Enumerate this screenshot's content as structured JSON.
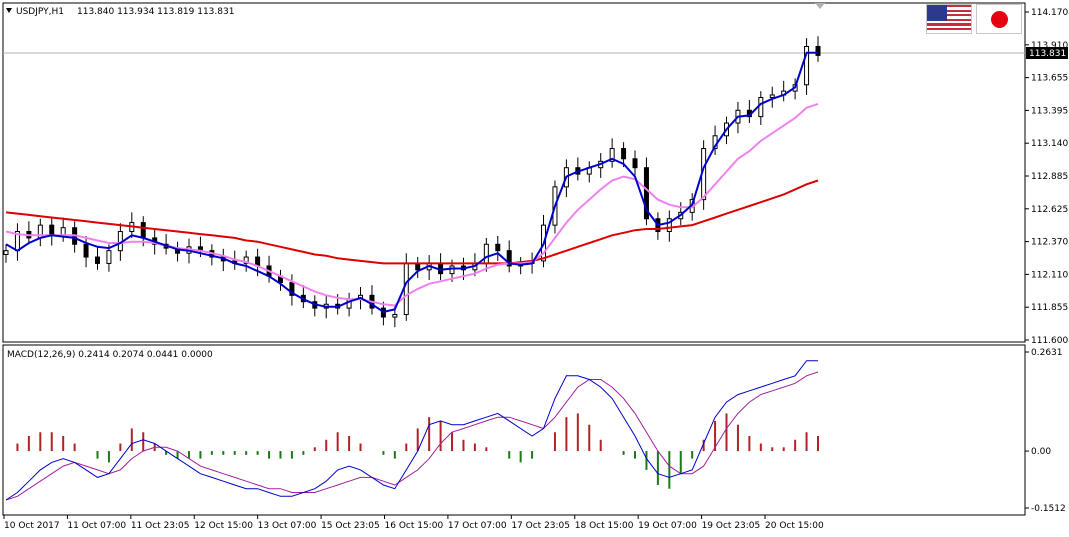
{
  "header": {
    "symbol": "USDJPY,H1",
    "ohlc": "113.840 113.934 113.819 113.831"
  },
  "flags": {
    "base": "us-flag-icon",
    "quote": "jp-flag-icon"
  },
  "macd": {
    "label": "MACD(12,26,9) 0.2414 0.2074 0.0441 0.0000",
    "colors": {
      "pos_hist": "#b22222",
      "neg_hist": "#1a7a1a",
      "macd_line": "#0000cc",
      "signal_line": "#a020a0"
    }
  },
  "chart_data": [
    {
      "type": "candlestick",
      "title": "USDJPY,H1",
      "ylim": [
        111.6,
        114.17
      ],
      "yticks": [
        "114.170",
        "113.910",
        "113.655",
        "113.395",
        "113.140",
        "112.885",
        "112.625",
        "112.370",
        "112.110",
        "111.855",
        "111.600"
      ],
      "current_price": "113.831",
      "xticks": [
        "10 Oct 2017",
        "11 Oct 07:00",
        "11 Oct 23:05",
        "12 Oct 15:00",
        "13 Oct 07:00",
        "15 Oct 23:05",
        "16 Oct 15:00",
        "17 Oct 07:00",
        "17 Oct 23:05",
        "18 Oct 15:00",
        "19 Oct 07:00",
        "19 Oct 23:05",
        "20 Oct 15:00"
      ],
      "colors": {
        "candle": "#000000",
        "fast_ma": "#0000cc",
        "mid_ma": "#ee82ee",
        "slow_ma": "#dd0000"
      },
      "close": [
        112.3,
        112.45,
        112.4,
        112.5,
        112.42,
        112.48,
        112.35,
        112.25,
        112.2,
        112.3,
        112.45,
        112.52,
        112.4,
        112.35,
        112.32,
        112.28,
        112.33,
        112.3,
        112.25,
        112.22,
        112.2,
        112.25,
        112.18,
        112.1,
        112.05,
        111.95,
        111.9,
        111.85,
        111.88,
        111.85,
        111.92,
        111.95,
        111.85,
        111.78,
        111.8,
        112.2,
        112.15,
        112.2,
        112.12,
        112.18,
        112.15,
        112.2,
        112.35,
        112.3,
        112.18,
        112.2,
        112.22,
        112.5,
        112.8,
        112.95,
        112.9,
        112.95,
        113.0,
        113.1,
        113.02,
        112.95,
        112.55,
        112.45,
        112.55,
        112.6,
        112.7,
        113.1,
        113.2,
        113.3,
        113.4,
        113.35,
        113.5,
        113.52,
        113.55,
        113.6,
        113.9,
        113.83
      ],
      "fast_ma": [
        112.35,
        112.3,
        112.36,
        112.4,
        112.42,
        112.41,
        112.4,
        112.36,
        112.33,
        112.32,
        112.36,
        112.42,
        112.4,
        112.37,
        112.34,
        112.31,
        112.3,
        112.28,
        112.26,
        112.24,
        112.2,
        112.18,
        112.14,
        112.1,
        112.04,
        111.97,
        111.92,
        111.88,
        111.86,
        111.86,
        111.9,
        111.93,
        111.88,
        111.82,
        111.84,
        112.05,
        112.14,
        112.18,
        112.15,
        112.16,
        112.16,
        112.18,
        112.25,
        112.28,
        112.2,
        112.19,
        112.2,
        112.35,
        112.65,
        112.88,
        112.92,
        112.95,
        112.98,
        113.02,
        112.98,
        112.88,
        112.62,
        112.5,
        112.52,
        112.58,
        112.66,
        112.95,
        113.12,
        113.25,
        113.35,
        113.36,
        113.45,
        113.49,
        113.52,
        113.58,
        113.85,
        113.85
      ],
      "mid_ma": [
        112.45,
        112.43,
        112.42,
        112.42,
        112.42,
        112.42,
        112.42,
        112.4,
        112.38,
        112.36,
        112.36,
        112.37,
        112.37,
        112.36,
        112.34,
        112.32,
        112.31,
        112.3,
        112.28,
        112.26,
        112.23,
        112.21,
        112.18,
        112.14,
        112.1,
        112.06,
        112.02,
        111.98,
        111.95,
        111.93,
        111.92,
        111.92,
        111.9,
        111.88,
        111.87,
        111.95,
        112.0,
        112.04,
        112.06,
        112.08,
        112.1,
        112.12,
        112.16,
        112.19,
        112.2,
        112.2,
        112.21,
        112.28,
        112.4,
        112.52,
        112.62,
        112.7,
        112.78,
        112.85,
        112.88,
        112.86,
        112.78,
        112.7,
        112.66,
        112.64,
        112.64,
        112.72,
        112.82,
        112.92,
        113.02,
        113.08,
        113.16,
        113.22,
        113.28,
        113.34,
        113.42,
        113.45
      ],
      "slow_ma": [
        112.6,
        112.59,
        112.58,
        112.57,
        112.56,
        112.55,
        112.54,
        112.53,
        112.52,
        112.51,
        112.5,
        112.49,
        112.48,
        112.47,
        112.46,
        112.45,
        112.44,
        112.43,
        112.42,
        112.41,
        112.4,
        112.38,
        112.37,
        112.35,
        112.33,
        112.31,
        112.29,
        112.27,
        112.26,
        112.24,
        112.23,
        112.22,
        112.21,
        112.2,
        112.2,
        112.2,
        112.2,
        112.2,
        112.2,
        112.2,
        112.2,
        112.2,
        112.2,
        112.2,
        112.2,
        112.21,
        112.22,
        112.24,
        112.27,
        112.3,
        112.33,
        112.36,
        112.39,
        112.42,
        112.44,
        112.46,
        112.47,
        112.47,
        112.48,
        112.49,
        112.5,
        112.53,
        112.56,
        112.59,
        112.62,
        112.65,
        112.68,
        112.71,
        112.74,
        112.78,
        112.82,
        112.85
      ]
    },
    {
      "type": "bar",
      "title": "MACD(12,26,9)",
      "ylim": [
        -0.1512,
        0.2631
      ],
      "yticks": [
        "0.2631",
        "0.00",
        "-0.1512"
      ],
      "histogram": [
        0.0,
        0.02,
        0.04,
        0.05,
        0.05,
        0.04,
        0.02,
        0.0,
        -0.02,
        -0.03,
        0.02,
        0.06,
        0.05,
        0.02,
        -0.01,
        -0.02,
        -0.02,
        -0.02,
        -0.01,
        -0.01,
        -0.01,
        -0.01,
        -0.01,
        -0.02,
        -0.02,
        -0.02,
        -0.01,
        0.01,
        0.03,
        0.05,
        0.04,
        0.02,
        0.0,
        -0.01,
        -0.02,
        0.02,
        0.06,
        0.09,
        0.08,
        0.05,
        0.03,
        0.02,
        0.01,
        0.0,
        -0.02,
        -0.03,
        -0.02,
        0.0,
        0.05,
        0.09,
        0.1,
        0.07,
        0.03,
        0.0,
        -0.01,
        -0.02,
        -0.05,
        -0.09,
        -0.1,
        -0.06,
        -0.02,
        0.03,
        0.08,
        0.1,
        0.07,
        0.04,
        0.02,
        0.01,
        0.01,
        0.03,
        0.05,
        0.04
      ],
      "macd_line": [
        -0.13,
        -0.11,
        -0.08,
        -0.05,
        -0.03,
        -0.02,
        -0.03,
        -0.05,
        -0.07,
        -0.06,
        -0.02,
        0.02,
        0.03,
        0.02,
        0.0,
        -0.02,
        -0.04,
        -0.06,
        -0.07,
        -0.08,
        -0.09,
        -0.1,
        -0.1,
        -0.11,
        -0.12,
        -0.12,
        -0.11,
        -0.1,
        -0.08,
        -0.05,
        -0.04,
        -0.05,
        -0.07,
        -0.09,
        -0.1,
        -0.05,
        0.0,
        0.07,
        0.08,
        0.07,
        0.07,
        0.08,
        0.09,
        0.1,
        0.08,
        0.06,
        0.04,
        0.06,
        0.14,
        0.2,
        0.2,
        0.19,
        0.17,
        0.14,
        0.09,
        0.04,
        -0.02,
        -0.06,
        -0.07,
        -0.06,
        -0.05,
        0.02,
        0.09,
        0.13,
        0.15,
        0.16,
        0.17,
        0.18,
        0.19,
        0.2,
        0.24,
        0.24
      ],
      "signal_line": [
        -0.13,
        -0.12,
        -0.1,
        -0.08,
        -0.06,
        -0.04,
        -0.03,
        -0.04,
        -0.05,
        -0.06,
        -0.05,
        -0.02,
        0.0,
        0.01,
        0.01,
        0.0,
        -0.02,
        -0.04,
        -0.05,
        -0.06,
        -0.07,
        -0.08,
        -0.09,
        -0.1,
        -0.1,
        -0.11,
        -0.11,
        -0.11,
        -0.1,
        -0.09,
        -0.08,
        -0.07,
        -0.07,
        -0.08,
        -0.09,
        -0.07,
        -0.05,
        -0.02,
        0.02,
        0.05,
        0.06,
        0.07,
        0.08,
        0.09,
        0.09,
        0.08,
        0.07,
        0.06,
        0.09,
        0.13,
        0.17,
        0.19,
        0.19,
        0.17,
        0.14,
        0.1,
        0.05,
        0.0,
        -0.04,
        -0.06,
        -0.06,
        -0.04,
        0.01,
        0.06,
        0.1,
        0.13,
        0.15,
        0.16,
        0.17,
        0.18,
        0.2,
        0.21
      ]
    }
  ]
}
